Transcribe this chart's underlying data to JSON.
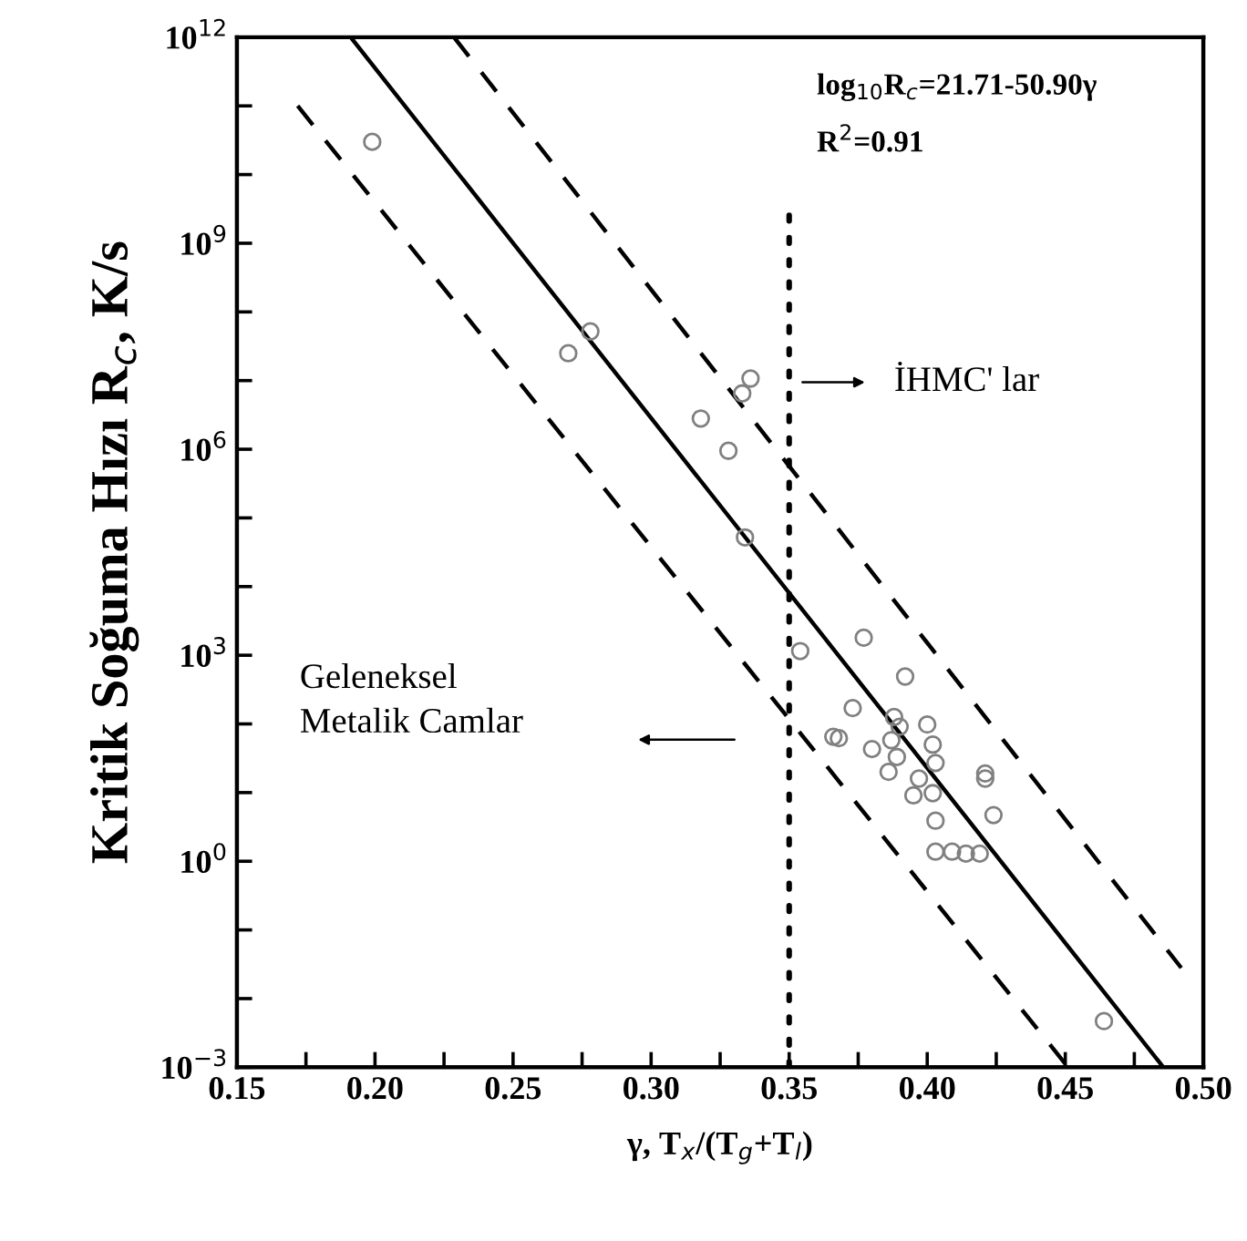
{
  "chart_data": {
    "type": "scatter",
    "xlabel": "γ, T$_{x}$/(T$_{g}$+T$_{l}$)",
    "ylabel": "Kritik Soğuma Hızı R$_{c}$, K/s",
    "log": "y",
    "grid": false,
    "ref_lines": [
      {
        "axis": "x",
        "value": 0.35,
        "line_style": "dotted",
        "color": "#000000"
      }
    ],
    "xlim": [
      0.15,
      0.5
    ],
    "xticks": [
      {
        "value": 0.15,
        "label": "0.15"
      },
      {
        "value": 0.175,
        "label": null
      },
      {
        "value": 0.2,
        "label": "0.20"
      },
      {
        "value": 0.225,
        "label": null
      },
      {
        "value": 0.25,
        "label": "0.25"
      },
      {
        "value": 0.275,
        "label": null
      },
      {
        "value": 0.3,
        "label": "0.30"
      },
      {
        "value": 0.325,
        "label": null
      },
      {
        "value": 0.35,
        "label": "0.35"
      },
      {
        "value": 0.375,
        "label": null
      },
      {
        "value": 0.4,
        "label": "0.40"
      },
      {
        "value": 0.425,
        "label": null
      },
      {
        "value": 0.45,
        "label": "0.45"
      },
      {
        "value": 0.475,
        "label": null
      },
      {
        "value": 0.5,
        "label": "0.50"
      }
    ],
    "ylim": [
      0.001,
      1000000000000.0
    ],
    "yticks": [
      {
        "value": 0.001,
        "label": "10$^{−3}$"
      },
      {
        "value": 0.01,
        "label": null
      },
      {
        "value": 0.1,
        "label": null
      },
      {
        "value": 1,
        "label": "10$^{0}$"
      },
      {
        "value": 10,
        "label": null
      },
      {
        "value": 100,
        "label": null
      },
      {
        "value": 1000,
        "label": "10$^{3}$"
      },
      {
        "value": 10000.0,
        "label": null
      },
      {
        "value": 100000.0,
        "label": null
      },
      {
        "value": 1000000.0,
        "label": "10$^{6}$"
      },
      {
        "value": 10000000.0,
        "label": null
      },
      {
        "value": 100000000.0,
        "label": null
      },
      {
        "value": 1000000000.0,
        "label": "10$^{9}$"
      },
      {
        "value": 10000000000.0,
        "label": null
      },
      {
        "value": 100000000000.0,
        "label": null
      },
      {
        "value": 1000000000000.0,
        "label": "10$^{12}$"
      }
    ],
    "annotations": [
      "log$_{10}$R$_{c}$=21.71-50.90γ",
      "R$^{2}$=0.91",
      "İHMC' lar",
      "Geleneksel\nMetalik Camlar"
    ],
    "series": [
      {
        "type": "scatter",
        "marker": "circle",
        "color": "#808080",
        "x": [
          0.199,
          0.278,
          0.27,
          0.318,
          0.328,
          0.336,
          0.333,
          0.334,
          0.354,
          0.377,
          0.392,
          0.373,
          0.366,
          0.368,
          0.38,
          0.388,
          0.39,
          0.387,
          0.389,
          0.386,
          0.4,
          0.402,
          0.403,
          0.397,
          0.395,
          0.402,
          0.421,
          0.421,
          0.424,
          0.403,
          0.403,
          0.409,
          0.414,
          0.419,
          0.464
        ],
        "values": [
          30000000000.0,
          52000000.0,
          25000000.0,
          2800000.0,
          950000.0,
          10700000.0,
          6500000.0,
          52000.0,
          1150,
          1800,
          490,
          170,
          65,
          62,
          43,
          126,
          91,
          58,
          33,
          20,
          98,
          50,
          27,
          16,
          9.1,
          9.8,
          19,
          16,
          4.7,
          3.9,
          1.38,
          1.38,
          1.29,
          1.29,
          0.0047
        ]
      },
      {
        "type": "line",
        "line_style": "solid",
        "color": "#000000",
        "x": [
          0.1912,
          0.4855
        ],
        "values": [
          1000000000000.0,
          0.001
        ]
      },
      {
        "type": "line",
        "line_style": "dashed",
        "color": "#000000",
        "x": [
          0.2286,
          0.492
        ],
        "values": [
          1000000000000.0,
          0.028
        ]
      },
      {
        "type": "line",
        "line_style": "dashed",
        "color": "#000000",
        "x": [
          0.172,
          0.451
        ],
        "values": [
          100000000000.0,
          0.001
        ]
      }
    ]
  }
}
